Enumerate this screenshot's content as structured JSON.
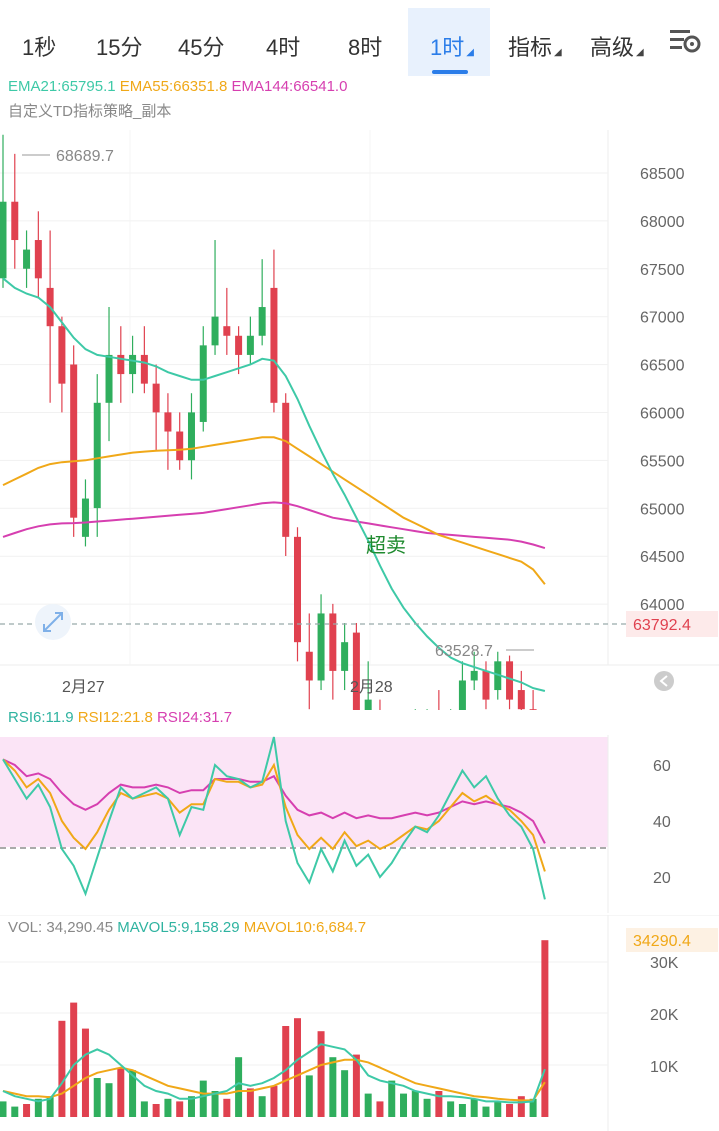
{
  "toolbar": {
    "tabs": [
      {
        "label": "1秒",
        "active": false
      },
      {
        "label": "15分",
        "active": false
      },
      {
        "label": "45分",
        "active": false
      },
      {
        "label": "4时",
        "active": false
      },
      {
        "label": "8时",
        "active": false
      },
      {
        "label": "1时",
        "active": true
      },
      {
        "label": "指标",
        "active": false
      },
      {
        "label": "高级",
        "active": false
      }
    ],
    "settings_icon": "chart-settings-icon"
  },
  "main_chart": {
    "ema21": "EMA21:65795.1",
    "ema55": "EMA55:66351.8",
    "ema144": "EMA144:66541.0",
    "strategy": "自定义TD指标策略_副本",
    "high_marker": "68689.7",
    "low_marker": "63528.7",
    "current_price": "63792.4",
    "annotation": "超卖",
    "y_ticks": [
      "68500",
      "68000",
      "67500",
      "67000",
      "66500",
      "66000",
      "65500",
      "65000",
      "64500",
      "64000"
    ],
    "date_labels": [
      "2月27",
      "2月28"
    ],
    "colors": {
      "up": "#2fae5d",
      "down": "#e0414f",
      "ema21": "#3ec9a7",
      "ema55": "#f0a818",
      "ema144": "#d63fb0"
    }
  },
  "rsi": {
    "rsi6": "RSI6:11.9",
    "rsi12": "RSI12:21.8",
    "rsi24": "RSI24:31.7",
    "y_ticks": [
      "60",
      "40",
      "20"
    ]
  },
  "volume": {
    "vol": "VOL: 34,290.45",
    "mavol5": "MAVOL5:9,158.29",
    "mavol10": "MAVOL10:6,684.7",
    "current": "34290.4",
    "y_ticks": [
      "30K",
      "20K",
      "10K"
    ]
  }
}
